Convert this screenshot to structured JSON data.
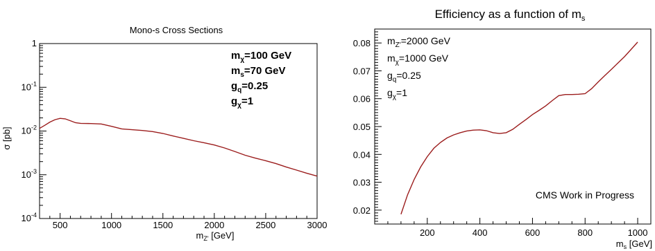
{
  "chart_data": [
    {
      "type": "line",
      "title": "Mono-s Cross Sections",
      "xlabel": {
        "main": "m",
        "sub": "Z'",
        "unit": " [GeV]"
      },
      "ylabel": "σ [pb]",
      "xlim": [
        300,
        3000
      ],
      "ylim": [
        0.0001,
        1
      ],
      "log_y": true,
      "x_ticks": [
        500,
        1000,
        1500,
        2000,
        2500,
        3000
      ],
      "x_tick_labels": [
        "500",
        "1000",
        "1500",
        "2000",
        "2500",
        "3000"
      ],
      "y_ticks": [
        0.0001,
        0.001,
        0.01,
        0.1,
        1
      ],
      "y_tick_labels": [
        {
          "base": "10",
          "exp": "-4"
        },
        {
          "base": "10",
          "exp": "-3"
        },
        {
          "base": "10",
          "exp": "-2"
        },
        {
          "base": "10",
          "exp": "-1"
        },
        {
          "base": "1",
          "exp": ""
        }
      ],
      "annotations": [
        {
          "main": "m",
          "sub": "χ",
          "rest": "=100 GeV"
        },
        {
          "main": "m",
          "sub": "s",
          "rest": "=70 GeV"
        },
        {
          "main": "g",
          "sub": "q",
          "rest": "=0.25"
        },
        {
          "main": "g",
          "sub": "χ",
          "rest": "=1"
        }
      ],
      "series": [
        {
          "color": "#9b1c1c",
          "x": [
            300,
            350,
            400,
            450,
            500,
            550,
            600,
            650,
            700,
            800,
            900,
            1000,
            1100,
            1200,
            1300,
            1400,
            1500,
            1600,
            1700,
            1800,
            1900,
            2000,
            2100,
            2200,
            2300,
            2400,
            2500,
            2600,
            2700,
            2800,
            2900,
            3000
          ],
          "y": [
            0.0115,
            0.0135,
            0.016,
            0.0182,
            0.0195,
            0.019,
            0.0172,
            0.0155,
            0.015,
            0.0148,
            0.0145,
            0.0128,
            0.0112,
            0.0107,
            0.0103,
            0.0097,
            0.0088,
            0.0077,
            0.0068,
            0.006,
            0.0054,
            0.0048,
            0.0041,
            0.0034,
            0.0028,
            0.0024,
            0.0021,
            0.0018,
            0.0015,
            0.00128,
            0.00108,
            0.00093
          ]
        }
      ]
    },
    {
      "type": "line",
      "title": {
        "main": "Efficiency as a function of m",
        "sub": "s"
      },
      "xlabel": {
        "main": "m",
        "sub": "s",
        "unit": " [GeV]"
      },
      "ylabel": "",
      "xlim": [
        0,
        1050
      ],
      "ylim": [
        0.015,
        0.085
      ],
      "x_ticks": [
        200,
        400,
        600,
        800,
        1000
      ],
      "x_tick_labels": [
        "200",
        "400",
        "600",
        "800",
        "1000"
      ],
      "y_ticks": [
        0.02,
        0.03,
        0.04,
        0.05,
        0.06,
        0.07,
        0.08
      ],
      "y_tick_labels": [
        "0.02",
        "0.03",
        "0.04",
        "0.05",
        "0.06",
        "0.07",
        "0.08"
      ],
      "annotations": [
        {
          "main": "m",
          "sub": "Z'",
          "rest": "=2000 GeV"
        },
        {
          "main": "m",
          "sub": "χ",
          "rest": "=1000 GeV"
        },
        {
          "main": "g",
          "sub": "q",
          "rest": "=0.25"
        },
        {
          "main": "g",
          "sub": "χ",
          "rest": "=1"
        }
      ],
      "footnote": "CMS Work in Progress",
      "series": [
        {
          "color": "#c03030",
          "x": [
            100,
            125,
            150,
            175,
            200,
            225,
            250,
            275,
            300,
            325,
            350,
            375,
            400,
            425,
            450,
            475,
            500,
            525,
            550,
            575,
            600,
            625,
            650,
            675,
            700,
            725,
            750,
            775,
            800,
            825,
            850,
            875,
            900,
            925,
            950,
            975,
            1000
          ],
          "y": [
            0.0185,
            0.0255,
            0.031,
            0.0355,
            0.0392,
            0.0422,
            0.0443,
            0.0459,
            0.047,
            0.0478,
            0.0484,
            0.0487,
            0.0488,
            0.0485,
            0.0478,
            0.0475,
            0.0478,
            0.049,
            0.0508,
            0.0525,
            0.0543,
            0.0558,
            0.0574,
            0.0593,
            0.0611,
            0.0615,
            0.0615,
            0.0616,
            0.0618,
            0.0636,
            0.066,
            0.0683,
            0.0705,
            0.0728,
            0.0751,
            0.0777,
            0.0803
          ]
        }
      ]
    }
  ]
}
